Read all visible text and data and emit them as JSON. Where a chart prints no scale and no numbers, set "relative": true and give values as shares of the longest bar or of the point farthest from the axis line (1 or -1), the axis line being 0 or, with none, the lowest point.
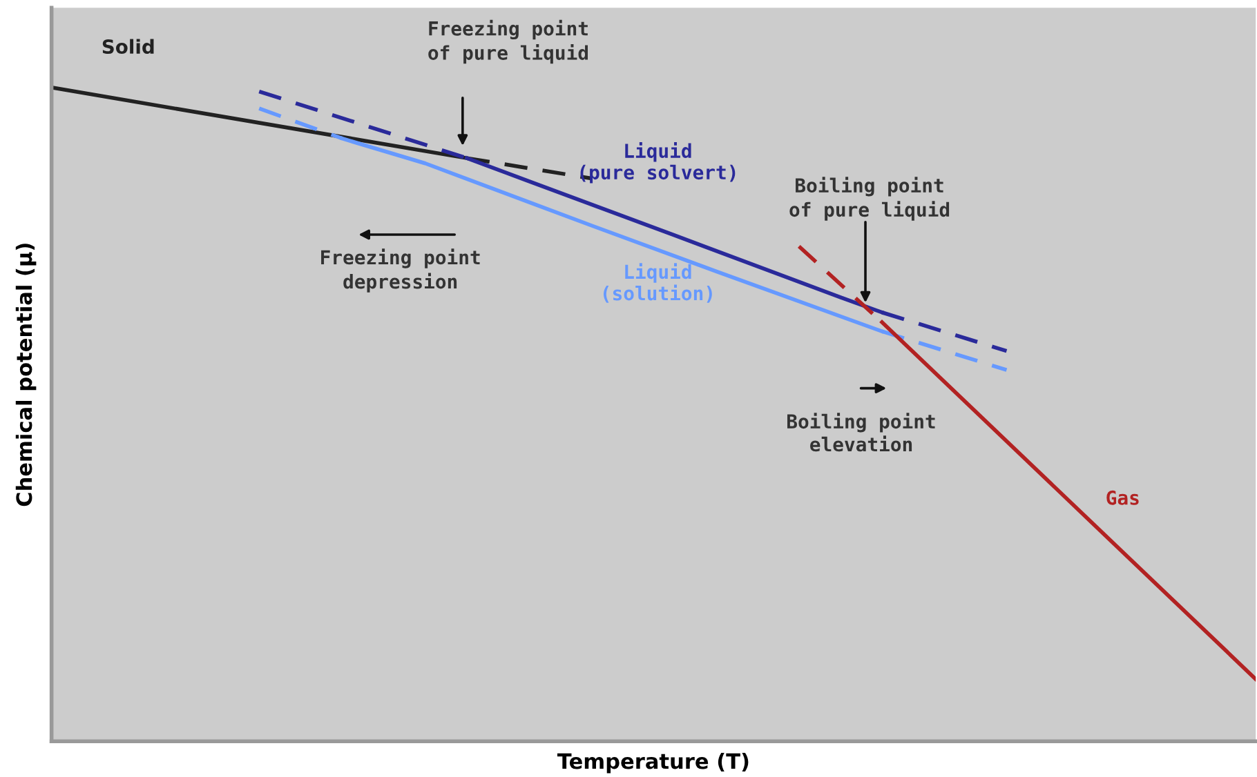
{
  "chart_data": {
    "type": "line",
    "relative": true,
    "xlabel": "Temperature (T)",
    "ylabel": "Chemical potential (μ)",
    "categories": [
      null,
      null,
      null,
      null,
      null,
      null,
      null,
      null,
      null,
      null,
      null,
      null,
      null,
      null,
      null,
      null,
      null,
      null,
      null,
      null,
      null,
      null,
      null,
      null,
      null,
      null,
      null,
      null,
      null,
      null
    ],
    "series": [
      {
        "name": "Solid",
        "color": "#222222",
        "line_style": "solid",
        "values": [
          1.0,
          null,
          null,
          null,
          null,
          null,
          null,
          null,
          null,
          null,
          0.892,
          null,
          null,
          null,
          null,
          null,
          null,
          null,
          null,
          null,
          null,
          null,
          null,
          null,
          null,
          null,
          null,
          null,
          null,
          null
        ]
      },
      {
        "color": "#222222",
        "line_style": "dashed",
        "values": [
          null,
          null,
          null,
          null,
          null,
          null,
          null,
          null,
          null,
          null,
          0.892,
          null,
          null,
          0.861,
          null,
          null,
          null,
          null,
          null,
          null,
          null,
          null,
          null,
          null,
          null,
          null,
          null,
          null,
          null,
          null
        ]
      },
      {
        "color": "#2a2a9a",
        "line_style": "dashed",
        "values": [
          null,
          null,
          null,
          null,
          null,
          0.994,
          null,
          null,
          null,
          null,
          0.892,
          null,
          null,
          null,
          null,
          null,
          null,
          null,
          null,
          null,
          null,
          null,
          null,
          null,
          null,
          null,
          null,
          null,
          null,
          null
        ]
      },
      {
        "name": "Liquid\n(pure solvert)",
        "color": "#2a2a9a",
        "line_style": "solid",
        "values": [
          null,
          null,
          null,
          null,
          null,
          null,
          null,
          null,
          null,
          null,
          0.892,
          null,
          null,
          null,
          null,
          0.774,
          null,
          null,
          null,
          0.679,
          0.656,
          null,
          null,
          null,
          null,
          null,
          null,
          null,
          null,
          null
        ]
      },
      {
        "color": "#2a2a9a",
        "line_style": "dashed",
        "values": [
          null,
          null,
          null,
          null,
          null,
          null,
          null,
          null,
          null,
          null,
          null,
          null,
          null,
          null,
          null,
          null,
          null,
          null,
          null,
          null,
          0.656,
          null,
          null,
          0.597,
          null,
          null,
          null,
          null,
          null,
          null
        ]
      },
      {
        "color": "#6699ff",
        "line_style": "dashed",
        "values": [
          null,
          null,
          null,
          null,
          null,
          0.968,
          null,
          0.922,
          null,
          null,
          null,
          null,
          null,
          null,
          null,
          null,
          null,
          null,
          null,
          null,
          null,
          null,
          null,
          null,
          null,
          null,
          null,
          null,
          null,
          null
        ]
      },
      {
        "name": "Liquid\n(solution)",
        "color": "#6699ff",
        "line_style": "solid",
        "values": [
          null,
          null,
          null,
          null,
          null,
          null,
          null,
          0.922,
          null,
          0.884,
          null,
          null,
          null,
          0.789,
          null,
          null,
          0.719,
          null,
          null,
          null,
          0.627,
          null,
          null,
          null,
          null,
          null,
          null,
          null,
          null,
          null
        ]
      },
      {
        "color": "#6699ff",
        "line_style": "dashed",
        "values": [
          null,
          null,
          null,
          null,
          null,
          null,
          null,
          null,
          null,
          null,
          null,
          null,
          null,
          null,
          null,
          null,
          null,
          null,
          null,
          null,
          0.627,
          null,
          null,
          0.568,
          null,
          null,
          null,
          null,
          null,
          null
        ]
      },
      {
        "color": "#b22222",
        "line_style": "dashed",
        "values": [
          null,
          null,
          null,
          null,
          null,
          null,
          null,
          null,
          null,
          null,
          null,
          null,
          null,
          null,
          null,
          null,
          null,
          null,
          0.757,
          null,
          0.641,
          null,
          null,
          null,
          null,
          null,
          null,
          null,
          null,
          null
        ]
      },
      {
        "name": "Gas",
        "color": "#b22222",
        "line_style": "solid",
        "values": [
          null,
          null,
          null,
          null,
          null,
          null,
          null,
          null,
          null,
          null,
          null,
          null,
          null,
          null,
          null,
          null,
          null,
          null,
          null,
          null,
          0.641,
          null,
          null,
          null,
          null,
          null,
          null,
          null,
          null,
          0.095
        ]
      }
    ],
    "annotations": [
      "Freezing point\nof pure liquid",
      "Freezing point\ndepression",
      "Boiling point\nof pure liquid",
      "Boiling point\nelevation"
    ],
    "legend": false
  }
}
